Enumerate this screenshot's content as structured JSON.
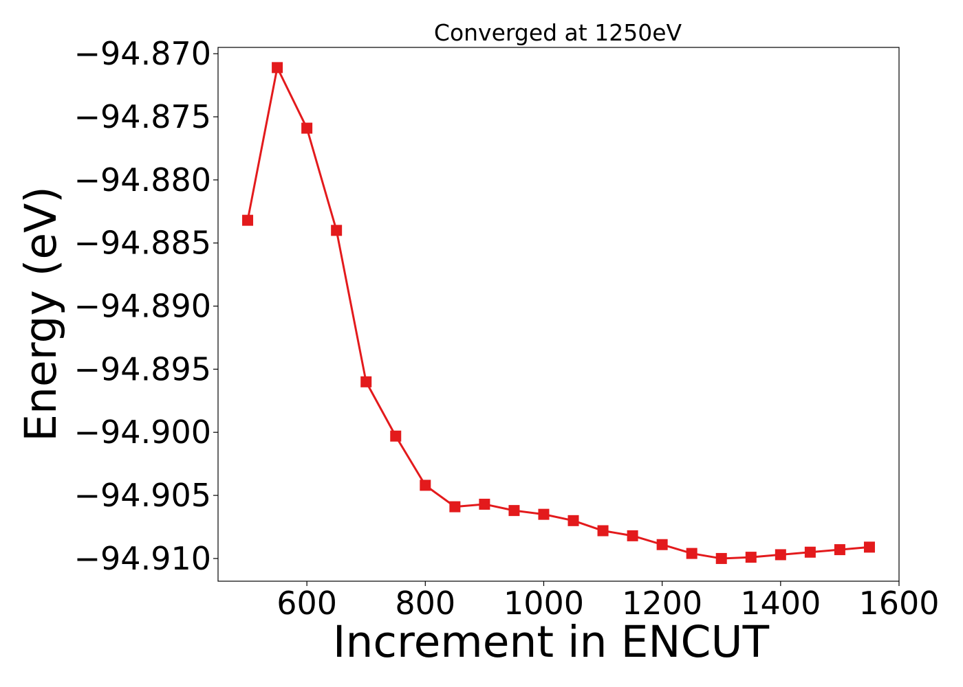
{
  "chart_data": {
    "type": "line",
    "title": "Converged at 1250eV",
    "xlabel": "Increment in ENCUT",
    "ylabel": "Energy (eV)",
    "xlim": [
      450,
      1600
    ],
    "ylim": [
      -94.9118,
      -94.8695
    ],
    "xticks": [
      600,
      800,
      1000,
      1200,
      1400,
      1600
    ],
    "xtick_labels": [
      "600",
      "800",
      "1000",
      "1200",
      "1400",
      "1600"
    ],
    "yticks": [
      -94.87,
      -94.875,
      -94.88,
      -94.885,
      -94.89,
      -94.895,
      -94.9,
      -94.905,
      -94.91
    ],
    "ytick_labels": [
      "−94.870",
      "−94.875",
      "−94.880",
      "−94.885",
      "−94.890",
      "−94.895",
      "−94.900",
      "−94.905",
      "−94.910"
    ],
    "grid": false,
    "series": [
      {
        "color": "#e31a1c",
        "marker": "square",
        "x": [
          500,
          550,
          600,
          650,
          700,
          750,
          800,
          850,
          900,
          950,
          1000,
          1050,
          1100,
          1150,
          1200,
          1250,
          1300,
          1350,
          1400,
          1450,
          1500,
          1550
        ],
        "y": [
          -94.8832,
          -94.8711,
          -94.8759,
          -94.884,
          -94.896,
          -94.9003,
          -94.9042,
          -94.9059,
          -94.9057,
          -94.9062,
          -94.9065,
          -94.907,
          -94.9078,
          -94.9082,
          -94.9089,
          -94.9096,
          -94.91,
          -94.9099,
          -94.9097,
          -94.9095,
          -94.9093,
          -94.9091
        ]
      }
    ]
  }
}
